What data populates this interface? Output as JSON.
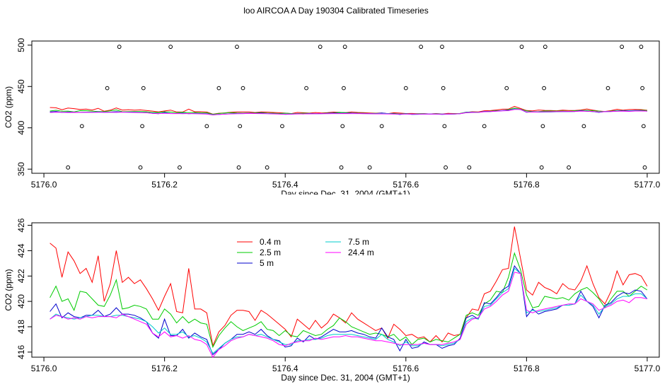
{
  "title": "loo AIRCOA A  Day 190304  Calibrated Timeseries",
  "chart_data": [
    {
      "type": "scatter",
      "xlabel": "Day since Dec. 31, 2004 (GMT+1)",
      "ylabel": "CO2 (ppm)",
      "xlim": [
        5175.98,
        5177.02
      ],
      "ylim": [
        345,
        505
      ],
      "xticks": [
        "5176.0",
        "5176.2",
        "5176.4",
        "5176.6",
        "5176.8",
        "5177.0"
      ],
      "yticks": [
        "350",
        "400",
        "450",
        "500"
      ],
      "calibration_points": {
        "x": [
          5176.04,
          5176.063,
          5176.105,
          5176.125,
          5176.16,
          5176.163,
          5176.165,
          5176.21,
          5176.225,
          5176.27,
          5176.29,
          5176.32,
          5176.323,
          5176.325,
          5176.33,
          5176.37,
          5176.395,
          5176.435,
          5176.458,
          5176.493,
          5176.495,
          5176.497,
          5176.499,
          5176.54,
          5176.56,
          5176.6,
          5176.625,
          5176.66,
          5176.662,
          5176.664,
          5176.666,
          5176.705,
          5176.73,
          5176.767,
          5176.792,
          5176.825,
          5176.827,
          5176.829,
          5176.831,
          5176.87,
          5176.895,
          5176.935,
          5176.958,
          5176.99,
          5176.992,
          5176.994,
          5176.996
        ],
        "y": [
          352,
          402,
          448,
          498,
          352,
          402,
          448,
          498,
          352,
          402,
          448,
          498,
          352,
          402,
          448,
          352,
          402,
          448,
          498,
          352,
          402,
          448,
          498,
          352,
          402,
          448,
          498,
          498,
          448,
          402,
          352,
          352,
          402,
          448,
          498,
          352,
          402,
          448,
          498,
          352,
          402,
          448,
          498,
          498,
          448,
          402,
          352
        ]
      }
    },
    {
      "type": "line",
      "xlabel": "Day since Dec. 31, 2004 (GMT+1)",
      "ylabel": "CO2 (ppm)",
      "xlim": [
        5175.98,
        5177.02
      ],
      "ylim": [
        415.6,
        426.2
      ],
      "xticks": [
        "5176.0",
        "5176.2",
        "5176.4",
        "5176.6",
        "5176.8",
        "5177.0"
      ],
      "yticks": [
        "416",
        "418",
        "420",
        "422",
        "424",
        "426"
      ],
      "legend_position": "top-left",
      "x_start": 5176.01,
      "x_step": 0.01,
      "series": [
        {
          "name": "0.4 m",
          "color": "#ff0000",
          "values": [
            424.6,
            424.2,
            421.9,
            423.9,
            423.2,
            422.2,
            422.6,
            421.5,
            423.6,
            420.0,
            421.4,
            424.0,
            421.5,
            421.9,
            421.4,
            421.7,
            421.0,
            420.2,
            419.3,
            420.4,
            421.4,
            419.2,
            419.1,
            422.6,
            419.4,
            419.4,
            419.1,
            416.5,
            417.6,
            418.1,
            418.9,
            419.3,
            419.3,
            419.2,
            418.5,
            419.3,
            419.0,
            418.6,
            418.2,
            417.8,
            417.2,
            418.6,
            418.2,
            417.8,
            418.5,
            417.9,
            418.3,
            419.0,
            418.7,
            418.3,
            419.1,
            418.6,
            418.3,
            418.0,
            417.7,
            417.9,
            417.1,
            418.2,
            417.8,
            417.3,
            417.4,
            417.1,
            417.2,
            416.8,
            417.3,
            416.8,
            417.5,
            417.3,
            417.4,
            418.7,
            419.4,
            419.3,
            420.6,
            420.8,
            421.6,
            422.5,
            422.6,
            425.9,
            423.4,
            420.9,
            420.5,
            421.5,
            421.1,
            420.9,
            420.6,
            421.4,
            421.0,
            420.9,
            421.6,
            422.8,
            421.4,
            420.3,
            419.8,
            420.8,
            422.4,
            421.3,
            422.1,
            422.2,
            422.0,
            421.2
          ]
        },
        {
          "name": "2.5 m",
          "color": "#00cc00",
          "values": [
            420.3,
            421.2,
            420.0,
            420.2,
            419.3,
            420.8,
            420.7,
            420.2,
            419.7,
            419.6,
            420.5,
            421.7,
            419.4,
            419.5,
            419.7,
            419.6,
            419.4,
            418.6,
            418.6,
            419.4,
            419.0,
            418.3,
            418.8,
            418.3,
            418.6,
            418.3,
            418.2,
            416.4,
            417.3,
            417.9,
            418.4,
            418.0,
            417.7,
            417.9,
            418.1,
            418.4,
            417.8,
            417.7,
            417.3,
            417.7,
            417.3,
            417.2,
            417.7,
            417.5,
            417.3,
            417.4,
            417.8,
            418.1,
            418.7,
            418.4,
            418.0,
            417.8,
            417.6,
            417.4,
            417.5,
            417.4,
            417.2,
            417.4,
            416.9,
            417.2,
            416.6,
            417.0,
            417.1,
            416.8,
            417.0,
            416.9,
            416.8,
            417.1,
            417.4,
            418.9,
            419.1,
            418.9,
            419.8,
            420.1,
            420.8,
            420.7,
            421.9,
            423.8,
            422.5,
            420.5,
            419.5,
            419.6,
            420.4,
            420.3,
            420.2,
            420.3,
            420.1,
            420.6,
            420.9,
            421.1,
            420.7,
            420.2,
            419.5,
            420.2,
            420.8,
            420.8,
            420.4,
            420.8,
            421.2,
            420.9
          ]
        },
        {
          "name": "5 m",
          "color": "#0000cc",
          "values": [
            419.2,
            419.8,
            418.7,
            419.1,
            418.8,
            418.7,
            418.9,
            418.9,
            419.3,
            418.8,
            419.0,
            419.5,
            419.0,
            419.0,
            418.9,
            418.7,
            418.4,
            417.5,
            417.1,
            418.6,
            417.3,
            417.3,
            417.8,
            417.1,
            417.5,
            417.2,
            417.0,
            415.8,
            416.2,
            416.7,
            417.0,
            417.4,
            417.4,
            417.6,
            417.4,
            417.8,
            417.3,
            417.0,
            416.9,
            416.4,
            416.5,
            417.1,
            416.8,
            417.3,
            417.0,
            417.2,
            417.5,
            417.8,
            417.6,
            417.6,
            417.7,
            417.5,
            417.4,
            417.2,
            417.1,
            417.9,
            417.2,
            417.0,
            416.1,
            417.0,
            416.3,
            416.4,
            416.8,
            416.6,
            416.6,
            416.3,
            416.5,
            416.6,
            417.1,
            418.7,
            418.9,
            418.6,
            419.9,
            419.8,
            420.3,
            420.9,
            421.2,
            422.8,
            422.2,
            418.8,
            419.4,
            419.0,
            419.2,
            419.3,
            419.4,
            419.7,
            419.7,
            419.8,
            420.8,
            420.0,
            419.6,
            418.7,
            419.7,
            419.9,
            420.4,
            420.7,
            420.6,
            420.9,
            420.8,
            420.2
          ]
        },
        {
          "name": "7.5 m",
          "color": "#00cccc",
          "values": [
            418.6,
            419.0,
            418.8,
            418.7,
            418.6,
            418.7,
            418.8,
            418.9,
            418.9,
            418.8,
            418.8,
            418.9,
            418.9,
            418.8,
            418.7,
            418.6,
            418.4,
            418.0,
            417.5,
            417.9,
            417.4,
            417.4,
            417.6,
            417.2,
            417.3,
            417.1,
            416.8,
            415.9,
            416.3,
            416.7,
            417.0,
            417.2,
            417.2,
            417.4,
            417.3,
            417.4,
            417.2,
            417.0,
            416.8,
            416.6,
            416.6,
            416.9,
            416.9,
            417.0,
            417.0,
            417.1,
            417.3,
            417.4,
            417.4,
            417.4,
            417.4,
            417.3,
            417.2,
            417.1,
            417.0,
            417.4,
            417.0,
            416.8,
            416.5,
            416.8,
            416.5,
            416.5,
            416.7,
            416.6,
            416.6,
            416.5,
            416.6,
            416.7,
            417.0,
            418.4,
            418.7,
            418.6,
            419.6,
            419.7,
            420.2,
            420.7,
            421.0,
            422.6,
            422.2,
            419.1,
            419.3,
            419.2,
            419.3,
            419.4,
            419.5,
            419.7,
            419.7,
            419.8,
            420.5,
            420.0,
            419.7,
            419.0,
            419.6,
            419.8,
            420.2,
            420.4,
            420.4,
            420.6,
            420.6,
            420.2
          ]
        },
        {
          "name": "24.4 m",
          "color": "#ff00ff",
          "values": [
            418.6,
            418.9,
            418.8,
            418.6,
            418.7,
            418.6,
            418.8,
            418.7,
            418.8,
            418.8,
            418.8,
            418.7,
            419.0,
            418.8,
            418.6,
            418.4,
            418.2,
            417.5,
            417.2,
            417.6,
            417.2,
            417.3,
            417.1,
            417.3,
            417.0,
            416.9,
            416.6,
            415.6,
            416.2,
            416.5,
            416.9,
            417.1,
            417.2,
            417.4,
            417.3,
            417.2,
            417.1,
            416.9,
            416.6,
            416.5,
            416.7,
            416.8,
            416.9,
            416.9,
            417.1,
            417.0,
            417.1,
            417.2,
            417.2,
            417.3,
            417.2,
            417.2,
            417.1,
            417.0,
            416.9,
            416.9,
            416.8,
            416.7,
            416.6,
            416.6,
            416.6,
            416.6,
            416.7,
            416.6,
            416.6,
            416.6,
            416.7,
            416.8,
            417.0,
            418.2,
            418.6,
            418.7,
            419.4,
            419.6,
            420.0,
            420.5,
            420.8,
            422.3,
            422.2,
            419.3,
            419.1,
            419.3,
            419.4,
            419.5,
            419.6,
            419.7,
            419.8,
            419.8,
            420.2,
            420.0,
            419.8,
            419.3,
            419.5,
            419.7,
            420.0,
            420.1,
            419.9,
            420.3,
            420.3,
            420.2
          ]
        }
      ]
    }
  ]
}
